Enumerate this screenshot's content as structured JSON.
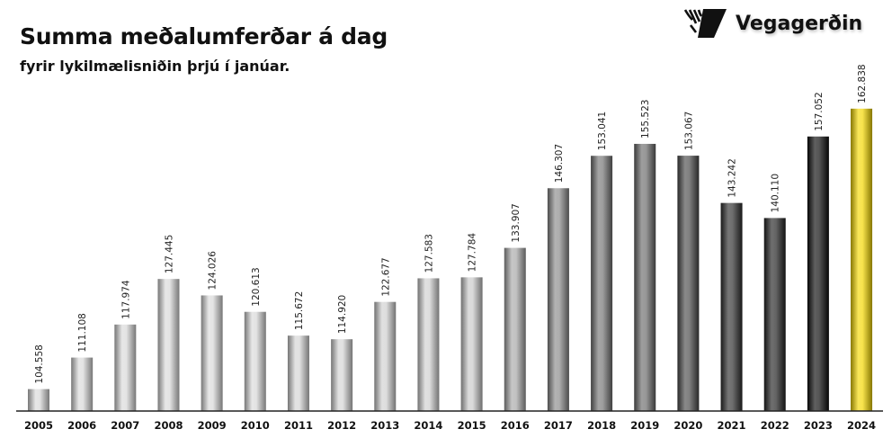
{
  "chart_data": {
    "type": "bar",
    "title": "Summa meðalumferðar á dag",
    "subtitle": "fyrir lykilmælisniðin þrjú í janúar.",
    "xlabel": "",
    "ylabel": "",
    "ylim": [
      100,
      165
    ],
    "grid": false,
    "categories": [
      "2005",
      "2006",
      "2007",
      "2008",
      "2009",
      "2010",
      "2011",
      "2012",
      "2013",
      "2014",
      "2015",
      "2016",
      "2017",
      "2018",
      "2019",
      "2020",
      "2021",
      "2022",
      "2023",
      "2024"
    ],
    "values": [
      104.558,
      111.108,
      117.974,
      127.445,
      124.026,
      120.613,
      115.672,
      114.92,
      122.677,
      127.583,
      127.784,
      133.907,
      146.307,
      153.041,
      155.523,
      153.067,
      143.242,
      140.11,
      157.052,
      162.838
    ],
    "data_labels": [
      "104.558",
      "111.108",
      "117.974",
      "127.445",
      "124.026",
      "120.613",
      "115.672",
      "114.920",
      "122.677",
      "127.583",
      "127.784",
      "133.907",
      "146.307",
      "153.041",
      "155.523",
      "153.067",
      "143.242",
      "140.110",
      "157.052",
      "162.838"
    ],
    "bar_colors": [
      "#d8d8d8",
      "#d8d8d8",
      "#d8d8d8",
      "#d8d8d8",
      "#d8d8d8",
      "#d8d8d8",
      "#d4d4d4",
      "#d4d4d4",
      "#d0d0d0",
      "#d0d0d0",
      "#c8c8c8",
      "#a8a8a8",
      "#8a8a8a",
      "#747474",
      "#6a6a6a",
      "#4a4a4a",
      "#2e2e2e",
      "#222222",
      "#0a0a0a",
      "#f5d800"
    ]
  },
  "logo": {
    "text": "Vegagerðin"
  }
}
